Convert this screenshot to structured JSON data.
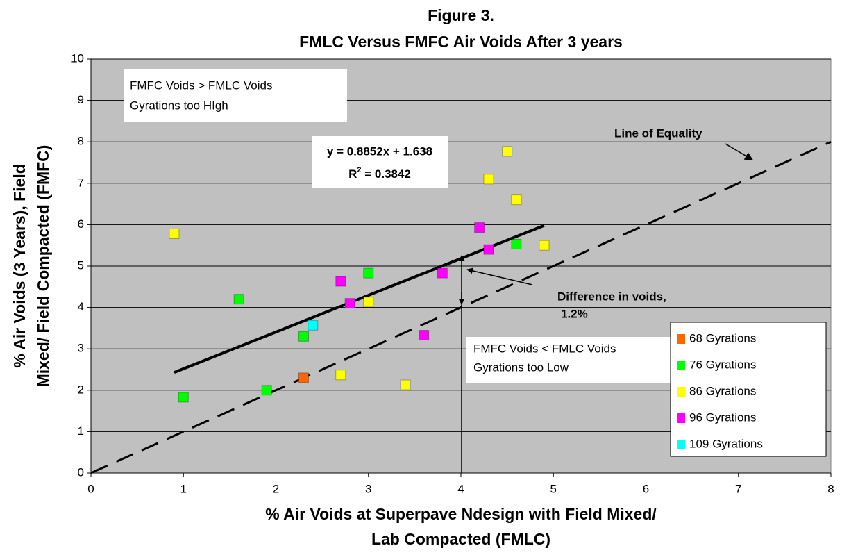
{
  "chart_data": {
    "type": "scatter",
    "title": [
      "Figure 3.",
      "FMLC Versus FMFC Air Voids After 3 years"
    ],
    "x_label": [
      "% Air Voids at Superpave Ndesign with Field Mixed/",
      "Lab Compacted (FMLC)"
    ],
    "y_label": [
      "% Air Voids (3 Years), Field",
      "Mixed/ Field Compacted (FMFC)"
    ],
    "xlim": [
      0,
      8
    ],
    "xticks": [
      0,
      1,
      2,
      3,
      4,
      5,
      6,
      7,
      8
    ],
    "ylim": [
      0,
      10
    ],
    "yticks": [
      0,
      1,
      2,
      3,
      4,
      5,
      6,
      7,
      8,
      9,
      10
    ],
    "grid": true,
    "legend": "lower right",
    "series": [
      {
        "name": "68 Gyrations",
        "color": "#ff6600",
        "x": [
          2.3
        ],
        "values": [
          2.3
        ]
      },
      {
        "name": "76 Gyrations",
        "color": "#00ff00",
        "x": [
          1.0,
          1.6,
          1.9,
          2.3,
          3.0,
          4.6
        ],
        "values": [
          1.83,
          4.2,
          2.0,
          3.3,
          4.83,
          5.53
        ]
      },
      {
        "name": "86 Gyrations",
        "color": "#ffff00",
        "x": [
          0.9,
          2.7,
          3.0,
          3.4,
          4.3,
          4.5,
          4.6,
          4.9
        ],
        "values": [
          5.78,
          2.37,
          4.13,
          2.13,
          7.1,
          7.77,
          6.6,
          5.5
        ]
      },
      {
        "name": "96 Gyrations",
        "color": "#ff00ff",
        "x": [
          2.7,
          2.8,
          3.6,
          3.8,
          4.2,
          4.3
        ],
        "values": [
          4.63,
          4.1,
          3.33,
          4.83,
          5.93,
          5.4
        ]
      },
      {
        "name": "109 Gyrations",
        "color": "#00ffff",
        "x": [
          2.4
        ],
        "values": [
          3.57
        ]
      }
    ],
    "trendline": {
      "x": [
        0.9,
        4.9
      ],
      "values": [
        2.43,
        5.98
      ]
    },
    "equality_line": {
      "name": "Line of Equality",
      "x": [
        0,
        8
      ],
      "values": [
        0,
        8
      ]
    },
    "equation": {
      "line1": "y = 0.8852x + 1.638",
      "r": "R",
      "sup": "2",
      "rest": " = 0.3842"
    },
    "annotations": {
      "high": [
        "FMFC Voids > FMLC Voids",
        "Gyrations too HIgh"
      ],
      "low": [
        "FMFC Voids < FMLC Voids",
        "Gyrations too Low"
      ],
      "difference": [
        "Difference in voids,",
        "1.2%"
      ]
    }
  }
}
